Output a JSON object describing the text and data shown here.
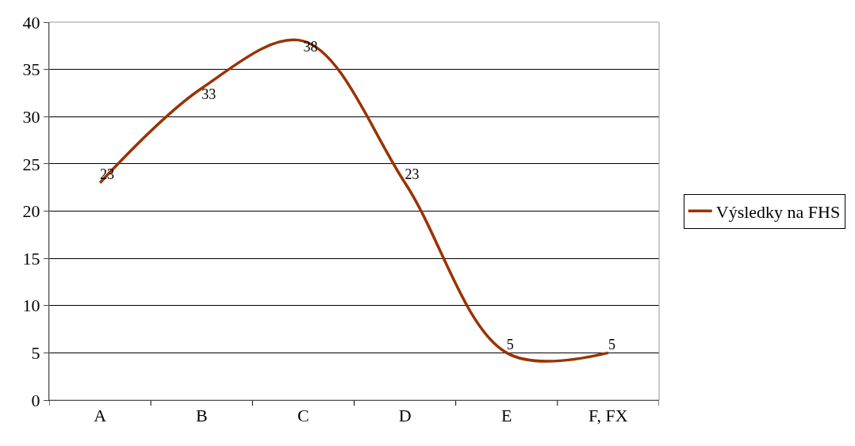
{
  "chart_data": {
    "type": "line",
    "categories": [
      "A",
      "B",
      "C",
      "D",
      "E",
      "F, FX"
    ],
    "series": [
      {
        "name": "Výsledky na FHS",
        "color": "#993300",
        "values": [
          23,
          33,
          38,
          23,
          5,
          5
        ]
      }
    ],
    "ylim": [
      0,
      40
    ],
    "yticks": [
      0,
      5,
      10,
      15,
      20,
      25,
      30,
      35,
      40
    ],
    "grid": "y",
    "legend": "right",
    "data_labels": true,
    "marker": "none",
    "line_style": "solid"
  }
}
